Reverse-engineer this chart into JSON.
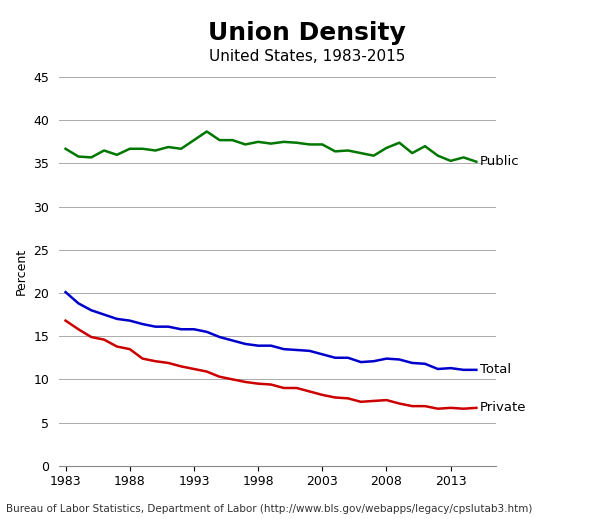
{
  "title": "Union Density",
  "subtitle": "United States, 1983-2015",
  "xlabel": "",
  "ylabel": "Percent",
  "source": "Bureau of Labor Statistics, Department of Labor (http://www.bls.gov/webapps/legacy/cpslutab3.htm)",
  "years": [
    1983,
    1984,
    1985,
    1986,
    1987,
    1988,
    1989,
    1990,
    1991,
    1992,
    1993,
    1994,
    1995,
    1996,
    1997,
    1998,
    1999,
    2000,
    2001,
    2002,
    2003,
    2004,
    2005,
    2006,
    2007,
    2008,
    2009,
    2010,
    2011,
    2012,
    2013,
    2014,
    2015
  ],
  "total": [
    20.1,
    18.8,
    18.0,
    17.5,
    17.0,
    16.8,
    16.4,
    16.1,
    16.1,
    15.8,
    15.8,
    15.5,
    14.9,
    14.5,
    14.1,
    13.9,
    13.9,
    13.5,
    13.4,
    13.3,
    12.9,
    12.5,
    12.5,
    12.0,
    12.1,
    12.4,
    12.3,
    11.9,
    11.8,
    11.2,
    11.3,
    11.1,
    11.1
  ],
  "public": [
    36.7,
    35.8,
    35.7,
    36.5,
    36.0,
    36.7,
    36.7,
    36.5,
    36.9,
    36.7,
    37.7,
    38.7,
    37.7,
    37.7,
    37.2,
    37.5,
    37.3,
    37.5,
    37.4,
    37.2,
    37.2,
    36.4,
    36.5,
    36.2,
    35.9,
    36.8,
    37.4,
    36.2,
    37.0,
    35.9,
    35.3,
    35.7,
    35.2
  ],
  "private": [
    16.8,
    15.8,
    14.9,
    14.6,
    13.8,
    13.5,
    12.4,
    12.1,
    11.9,
    11.5,
    11.2,
    10.9,
    10.3,
    10.0,
    9.7,
    9.5,
    9.4,
    9.0,
    9.0,
    8.6,
    8.2,
    7.9,
    7.8,
    7.4,
    7.5,
    7.6,
    7.2,
    6.9,
    6.9,
    6.6,
    6.7,
    6.6,
    6.7
  ],
  "total_color": "#0000cc",
  "public_color": "#007700",
  "private_color": "#cc0000",
  "ylim": [
    0,
    45
  ],
  "yticks": [
    0,
    5,
    10,
    15,
    20,
    25,
    30,
    35,
    40,
    45
  ],
  "xticks": [
    1983,
    1988,
    1993,
    1998,
    2003,
    2008,
    2013
  ],
  "background_color": "#ffffff",
  "grid_color": "#aaaaaa",
  "title_fontsize": 18,
  "subtitle_fontsize": 11,
  "label_fontsize": 9,
  "source_fontsize": 7.5,
  "linewidth": 1.8
}
